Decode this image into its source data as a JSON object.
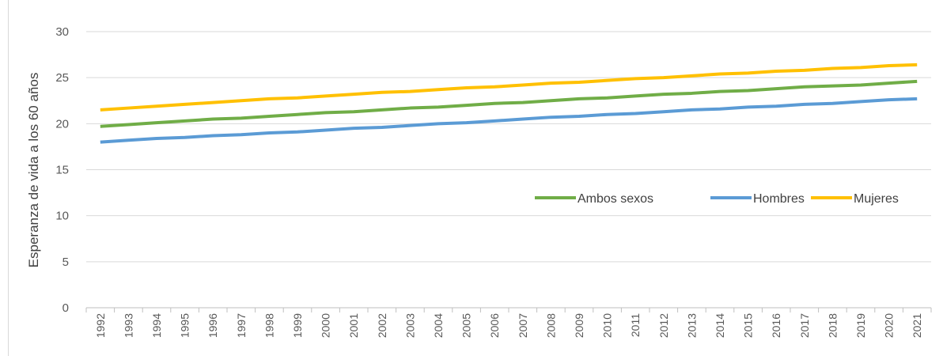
{
  "chart_data": {
    "type": "line",
    "title": "",
    "xlabel": "",
    "ylabel": "Esperanza de vida a los 60 años",
    "ylim": [
      0,
      30
    ],
    "yticks": [
      0,
      5,
      10,
      15,
      20,
      25,
      30
    ],
    "grid": "horizontal",
    "legend_position": "inside-right",
    "x": [
      "1992",
      "1993",
      "1994",
      "1995",
      "1996",
      "1997",
      "1998",
      "1999",
      "2000",
      "2001",
      "2002",
      "2003",
      "2004",
      "2005",
      "2006",
      "2007",
      "2008",
      "2009",
      "2010",
      "2011",
      "2012",
      "2013",
      "2014",
      "2015",
      "2016",
      "2017",
      "2018",
      "2019",
      "2020",
      "2021"
    ],
    "series": [
      {
        "name": "Ambos sexos",
        "color": "#70ad47",
        "values": [
          19.7,
          19.9,
          20.1,
          20.3,
          20.5,
          20.6,
          20.8,
          21.0,
          21.2,
          21.3,
          21.5,
          21.7,
          21.8,
          22.0,
          22.2,
          22.3,
          22.5,
          22.7,
          22.8,
          23.0,
          23.2,
          23.3,
          23.5,
          23.6,
          23.8,
          24.0,
          24.1,
          24.2,
          24.4,
          24.6
        ]
      },
      {
        "name": "Hombres",
        "color": "#5b9bd5",
        "values": [
          18.0,
          18.2,
          18.4,
          18.5,
          18.7,
          18.8,
          19.0,
          19.1,
          19.3,
          19.5,
          19.6,
          19.8,
          20.0,
          20.1,
          20.3,
          20.5,
          20.7,
          20.8,
          21.0,
          21.1,
          21.3,
          21.5,
          21.6,
          21.8,
          21.9,
          22.1,
          22.2,
          22.4,
          22.6,
          22.7
        ]
      },
      {
        "name": "Mujeres",
        "color": "#ffc000",
        "values": [
          21.5,
          21.7,
          21.9,
          22.1,
          22.3,
          22.5,
          22.7,
          22.8,
          23.0,
          23.2,
          23.4,
          23.5,
          23.7,
          23.9,
          24.0,
          24.2,
          24.4,
          24.5,
          24.7,
          24.9,
          25.0,
          25.2,
          25.4,
          25.5,
          25.7,
          25.8,
          26.0,
          26.1,
          26.3,
          26.4
        ]
      }
    ]
  }
}
